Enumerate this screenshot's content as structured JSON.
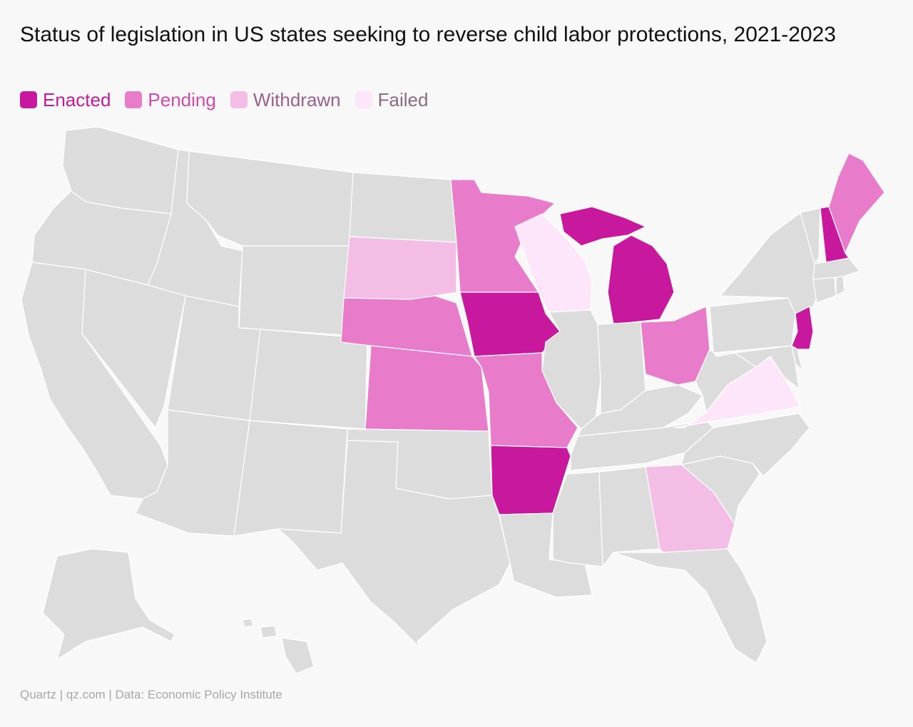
{
  "title": "Status of legislation in US states seeking to reverse child labor protections, 2021-2023",
  "legend": [
    {
      "label": "Enacted",
      "color": "#c8189e"
    },
    {
      "label": "Pending",
      "color": "#e87bca"
    },
    {
      "label": "Withdrawn",
      "color": "#f3bde6"
    },
    {
      "label": "Failed",
      "color": "#fde6fa"
    }
  ],
  "default_color": "#dcdcdc",
  "status_by_state": {
    "Michigan": "Enacted",
    "Iowa": "Enacted",
    "Arkansas": "Enacted",
    "New Jersey": "Enacted",
    "New Hampshire": "Enacted",
    "Minnesota": "Pending",
    "Nebraska": "Pending",
    "Kansas": "Pending",
    "Missouri": "Pending",
    "Ohio": "Pending",
    "Maine": "Pending",
    "South Dakota": "Withdrawn",
    "Georgia": "Withdrawn",
    "Wisconsin": "Failed",
    "Virginia": "Failed"
  },
  "source": "Quartz | qz.com | Data: Economic Policy Institute"
}
